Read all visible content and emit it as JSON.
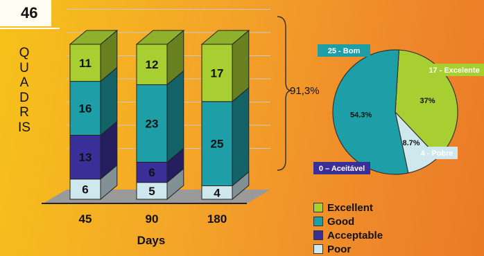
{
  "slide": {
    "number": "46",
    "vertical_title": "QUADRIS",
    "bracket_total": "91,3%"
  },
  "colors": {
    "Excellent": "#a8cf32",
    "Good": "#1e9ea6",
    "Acceptable": "#3a2f98",
    "Poor": "#cfe8ee"
  },
  "chart_data": [
    {
      "type": "bar",
      "stacked": true,
      "categories": [
        "45",
        "90",
        "180"
      ],
      "series": [
        {
          "name": "Poor",
          "values": [
            6,
            5,
            4
          ]
        },
        {
          "name": "Acceptable",
          "values": [
            13,
            6,
            0
          ]
        },
        {
          "name": "Good",
          "values": [
            16,
            23,
            25
          ]
        },
        {
          "name": "Excellent",
          "values": [
            11,
            12,
            17
          ]
        }
      ],
      "xlabel": "Days",
      "ylabel": "",
      "ylim": [
        0,
        46
      ],
      "legend": "bottom-right",
      "legend_entries": [
        "Excellent",
        "Good",
        "Acceptable",
        "Poor"
      ]
    },
    {
      "type": "pie",
      "slices": [
        {
          "label": "25 - Bom",
          "value": 54.3,
          "percent_label": "54.3%",
          "category": "Good"
        },
        {
          "label": "17 - Excelente",
          "value": 37,
          "percent_label": "37%",
          "category": "Excellent"
        },
        {
          "label": "4 - Pobre",
          "value": 8.7,
          "percent_label": "8.7%",
          "category": "Poor"
        },
        {
          "label": "0 – Aceitável",
          "value": 0,
          "percent_label": "",
          "category": "Acceptable"
        }
      ]
    }
  ]
}
